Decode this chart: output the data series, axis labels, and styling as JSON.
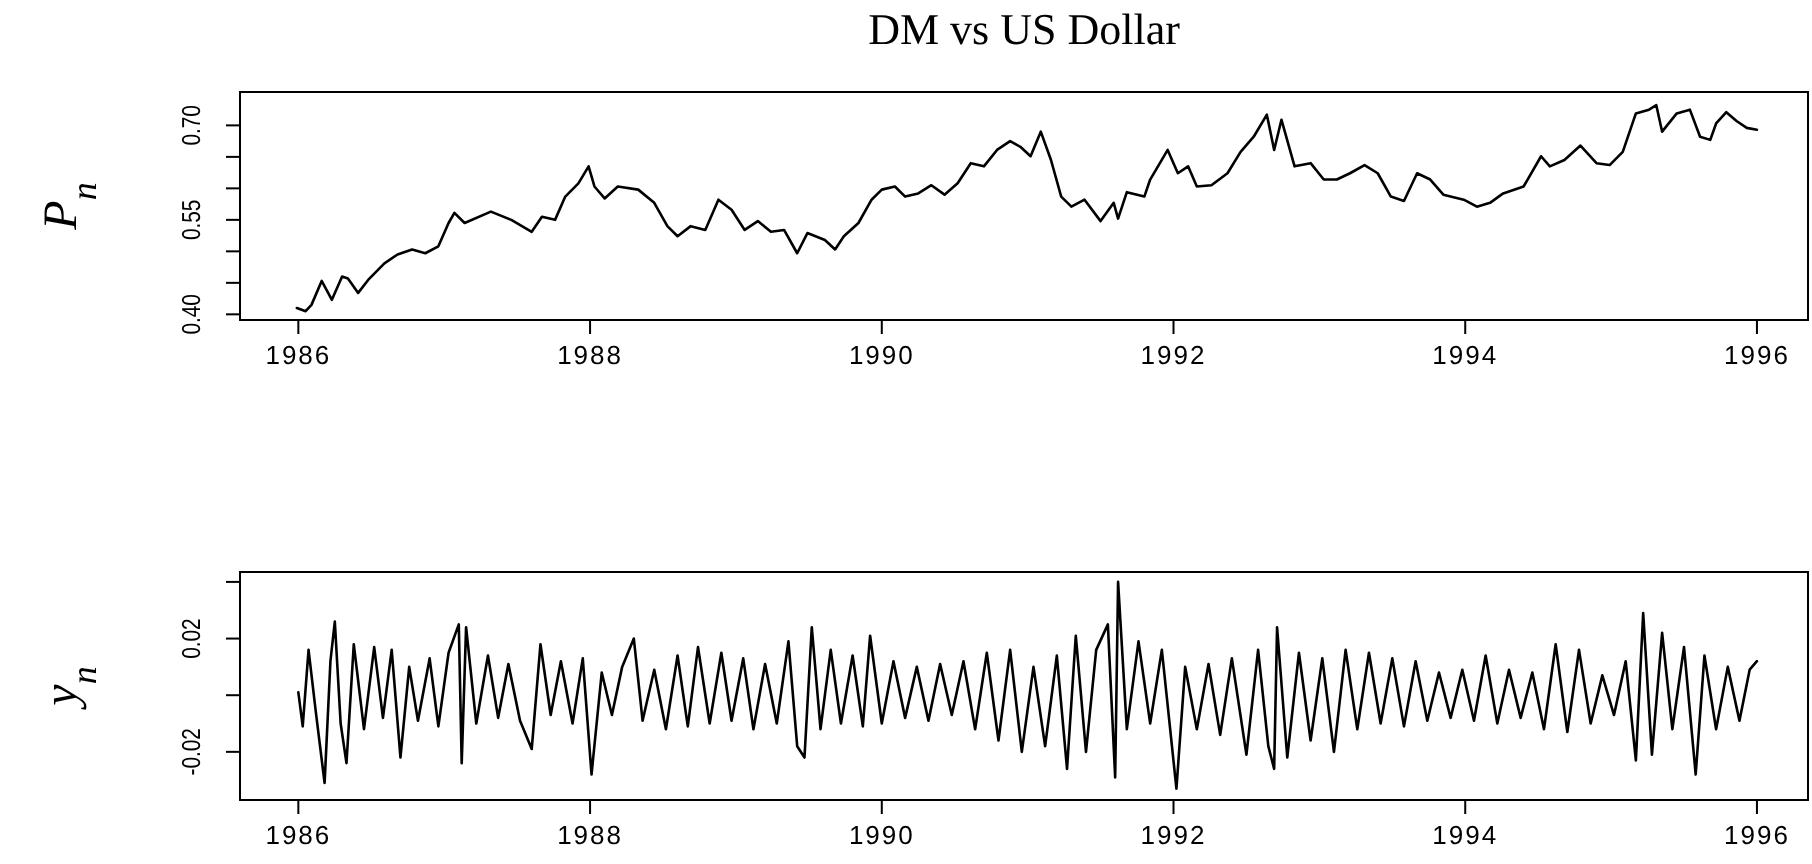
{
  "chart_data": [
    {
      "type": "line",
      "title": "DM vs US Dollar",
      "ylabel": "P$_{n}$",
      "x": [
        1985.99,
        1986.05,
        1986.09,
        1986.16,
        1986.23,
        1986.3,
        1986.34,
        1986.41,
        1986.48,
        1986.59,
        1986.68,
        1986.78,
        1986.87,
        1986.96,
        1987.03,
        1987.07,
        1987.14,
        1987.32,
        1987.46,
        1987.6,
        1987.67,
        1987.76,
        1987.83,
        1987.92,
        1987.99,
        1988.03,
        1988.1,
        1988.19,
        1988.33,
        1988.44,
        1988.53,
        1988.6,
        1988.69,
        1988.79,
        1988.88,
        1988.97,
        1989.06,
        1989.15,
        1989.24,
        1989.33,
        1989.42,
        1989.49,
        1989.61,
        1989.68,
        1989.74,
        1989.84,
        1989.93,
        1990.0,
        1990.09,
        1990.16,
        1990.25,
        1990.34,
        1990.43,
        1990.52,
        1990.61,
        1990.7,
        1990.79,
        1990.88,
        1990.95,
        1991.02,
        1991.09,
        1991.16,
        1991.23,
        1991.3,
        1991.39,
        1991.5,
        1991.59,
        1991.62,
        1991.68,
        1991.8,
        1991.84,
        1991.96,
        1992.03,
        1992.1,
        1992.16,
        1992.26,
        1992.37,
        1992.46,
        1992.55,
        1992.64,
        1992.69,
        1992.74,
        1992.83,
        1992.94,
        1993.03,
        1993.12,
        1993.21,
        1993.31,
        1993.4,
        1993.49,
        1993.58,
        1993.67,
        1993.76,
        1993.85,
        1993.99,
        1994.08,
        1994.17,
        1994.26,
        1994.4,
        1994.52,
        1994.58,
        1994.68,
        1994.79,
        1994.9,
        1994.99,
        1995.08,
        1995.17,
        1995.26,
        1995.31,
        1995.35,
        1995.45,
        1995.54,
        1995.61,
        1995.68,
        1995.72,
        1995.79,
        1995.86,
        1995.93,
        1996.0
      ],
      "series": [
        {
          "color": "#000000",
          "values": [
            0.41,
            0.405,
            0.415,
            0.453,
            0.423,
            0.46,
            0.457,
            0.434,
            0.455,
            0.481,
            0.495,
            0.503,
            0.497,
            0.508,
            0.545,
            0.561,
            0.545,
            0.563,
            0.55,
            0.531,
            0.555,
            0.55,
            0.587,
            0.608,
            0.635,
            0.603,
            0.584,
            0.603,
            0.598,
            0.577,
            0.54,
            0.524,
            0.54,
            0.534,
            0.582,
            0.566,
            0.534,
            0.548,
            0.531,
            0.534,
            0.497,
            0.529,
            0.518,
            0.503,
            0.524,
            0.545,
            0.582,
            0.598,
            0.603,
            0.587,
            0.592,
            0.605,
            0.59,
            0.608,
            0.64,
            0.635,
            0.661,
            0.675,
            0.666,
            0.651,
            0.69,
            0.645,
            0.587,
            0.571,
            0.582,
            0.548,
            0.577,
            0.552,
            0.594,
            0.587,
            0.614,
            0.661,
            0.624,
            0.635,
            0.603,
            0.605,
            0.624,
            0.658,
            0.682,
            0.717,
            0.661,
            0.709,
            0.635,
            0.64,
            0.614,
            0.614,
            0.624,
            0.637,
            0.624,
            0.587,
            0.58,
            0.624,
            0.614,
            0.59,
            0.582,
            0.571,
            0.577,
            0.592,
            0.603,
            0.651,
            0.635,
            0.645,
            0.668,
            0.64,
            0.637,
            0.658,
            0.719,
            0.725,
            0.732,
            0.69,
            0.719,
            0.725,
            0.682,
            0.677,
            0.703,
            0.721,
            0.707,
            0.696,
            0.693
          ]
        }
      ],
      "xlim": [
        1985.6,
        1996.35
      ],
      "xticks": [
        1986,
        1988,
        1990,
        1992,
        1994,
        1996
      ],
      "ylim": [
        0.391,
        0.753
      ],
      "yticks": [
        {
          "value": 0.4,
          "label": "0.40"
        },
        {
          "value": 0.45,
          "label": null
        },
        {
          "value": 0.5,
          "label": null
        },
        {
          "value": 0.55,
          "label": "0.55"
        },
        {
          "value": 0.6,
          "label": null
        },
        {
          "value": 0.65,
          "label": null
        },
        {
          "value": 0.7,
          "label": "0.70"
        }
      ]
    },
    {
      "type": "line",
      "ylabel": "y$_{n}$",
      "x": [
        1986.0,
        1986.03,
        1986.07,
        1986.12,
        1986.18,
        1986.22,
        1986.25,
        1986.29,
        1986.33,
        1986.38,
        1986.45,
        1986.52,
        1986.58,
        1986.64,
        1986.7,
        1986.76,
        1986.82,
        1986.9,
        1986.96,
        1987.03,
        1987.1,
        1987.12,
        1987.15,
        1987.22,
        1987.3,
        1987.37,
        1987.44,
        1987.52,
        1987.6,
        1987.66,
        1987.73,
        1987.8,
        1987.88,
        1987.95,
        1988.01,
        1988.08,
        1988.15,
        1988.22,
        1988.3,
        1988.36,
        1988.44,
        1988.52,
        1988.6,
        1988.67,
        1988.74,
        1988.82,
        1988.9,
        1988.97,
        1989.05,
        1989.12,
        1989.2,
        1989.28,
        1989.36,
        1989.42,
        1989.47,
        1989.52,
        1989.58,
        1989.65,
        1989.72,
        1989.8,
        1989.87,
        1989.92,
        1990.0,
        1990.08,
        1990.16,
        1990.24,
        1990.32,
        1990.4,
        1990.48,
        1990.56,
        1990.64,
        1990.72,
        1990.8,
        1990.88,
        1990.96,
        1991.04,
        1991.12,
        1991.2,
        1991.27,
        1991.33,
        1991.4,
        1991.47,
        1991.55,
        1991.6,
        1991.62,
        1991.68,
        1991.76,
        1991.84,
        1991.92,
        1992.02,
        1992.08,
        1992.16,
        1992.24,
        1992.32,
        1992.4,
        1992.5,
        1992.58,
        1992.65,
        1992.69,
        1992.71,
        1992.78,
        1992.86,
        1992.94,
        1993.02,
        1993.1,
        1993.18,
        1993.26,
        1993.34,
        1993.42,
        1993.5,
        1993.58,
        1993.66,
        1993.74,
        1993.82,
        1993.9,
        1993.98,
        1994.06,
        1994.14,
        1994.22,
        1994.3,
        1994.38,
        1994.46,
        1994.54,
        1994.62,
        1994.7,
        1994.78,
        1994.86,
        1994.94,
        1995.02,
        1995.1,
        1995.17,
        1995.22,
        1995.28,
        1995.35,
        1995.42,
        1995.5,
        1995.58,
        1995.64,
        1995.72,
        1995.8,
        1995.88,
        1995.95,
        1996.0
      ],
      "series": [
        {
          "color": "#000000",
          "values": [
            0.001,
            -0.011,
            0.016,
            -0.006,
            -0.031,
            0.012,
            0.026,
            -0.01,
            -0.024,
            0.018,
            -0.012,
            0.017,
            -0.008,
            0.016,
            -0.022,
            0.01,
            -0.009,
            0.013,
            -0.011,
            0.015,
            0.025,
            -0.024,
            0.024,
            -0.01,
            0.014,
            -0.008,
            0.011,
            -0.009,
            -0.019,
            0.018,
            -0.007,
            0.012,
            -0.01,
            0.013,
            -0.028,
            0.008,
            -0.007,
            0.01,
            0.02,
            -0.009,
            0.009,
            -0.012,
            0.014,
            -0.011,
            0.017,
            -0.01,
            0.015,
            -0.009,
            0.013,
            -0.012,
            0.011,
            -0.01,
            0.019,
            -0.018,
            -0.022,
            0.024,
            -0.012,
            0.016,
            -0.01,
            0.014,
            -0.011,
            0.021,
            -0.01,
            0.012,
            -0.008,
            0.01,
            -0.009,
            0.011,
            -0.007,
            0.012,
            -0.012,
            0.015,
            -0.016,
            0.016,
            -0.02,
            0.01,
            -0.018,
            0.014,
            -0.026,
            0.021,
            -0.02,
            0.016,
            0.025,
            -0.029,
            0.04,
            -0.012,
            0.019,
            -0.01,
            0.016,
            -0.033,
            0.01,
            -0.012,
            0.011,
            -0.014,
            0.013,
            -0.021,
            0.016,
            -0.018,
            -0.026,
            0.024,
            -0.022,
            0.015,
            -0.016,
            0.013,
            -0.02,
            0.016,
            -0.012,
            0.015,
            -0.01,
            0.013,
            -0.011,
            0.012,
            -0.009,
            0.008,
            -0.008,
            0.009,
            -0.009,
            0.014,
            -0.01,
            0.009,
            -0.008,
            0.008,
            -0.012,
            0.018,
            -0.013,
            0.016,
            -0.01,
            0.007,
            -0.007,
            0.012,
            -0.023,
            0.029,
            -0.021,
            0.022,
            -0.012,
            0.017,
            -0.028,
            0.014,
            -0.012,
            0.01,
            -0.009,
            0.009,
            0.012
          ]
        }
      ],
      "xlim": [
        1985.6,
        1996.35
      ],
      "xticks": [
        1986,
        1988,
        1990,
        1992,
        1994,
        1996
      ],
      "ylim": [
        -0.037,
        0.0435
      ],
      "yticks": [
        {
          "value": -0.02,
          "label": "-0.02"
        },
        {
          "value": 0,
          "label": null
        },
        {
          "value": 0.02,
          "label": "0.02"
        },
        {
          "value": 0.04,
          "label": null
        }
      ]
    }
  ]
}
